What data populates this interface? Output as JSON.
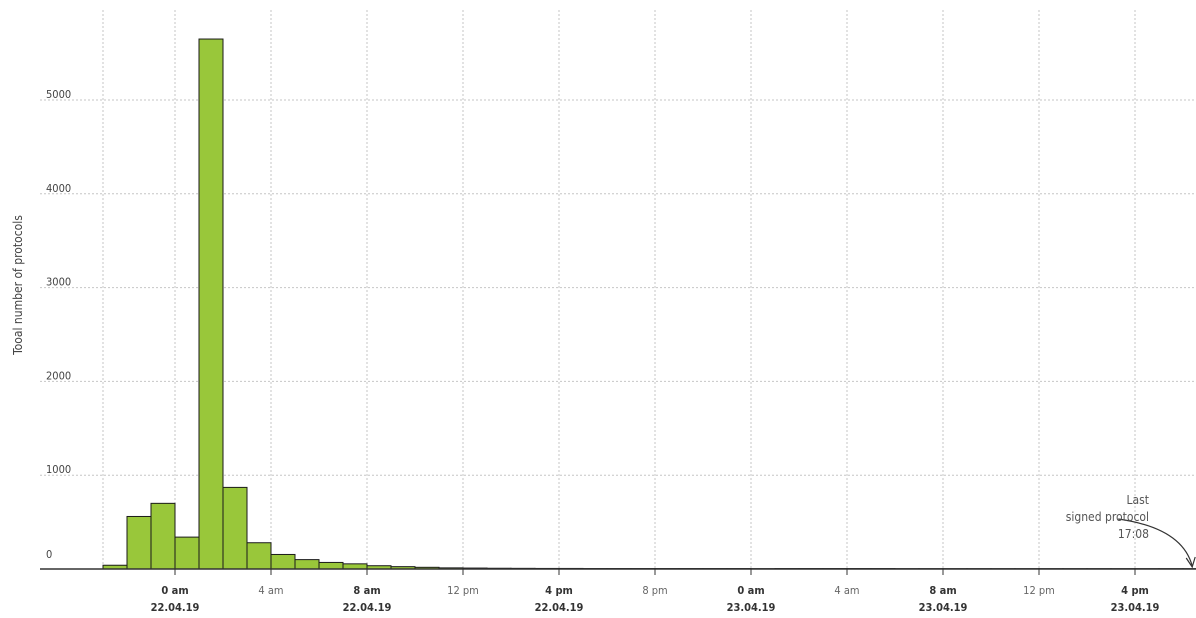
{
  "chart_data": {
    "type": "bar",
    "ylabel": "Tooal number of protocols",
    "ylim": [
      0,
      5900
    ],
    "yticks": [
      0,
      1000,
      2000,
      3000,
      4000,
      5000
    ],
    "grid": true,
    "bar_color": "#99c73a",
    "bin_hours": 1,
    "bin_start": "2019-04-21 21:00",
    "values": [
      40,
      560,
      700,
      340,
      5650,
      870,
      280,
      155,
      100,
      70,
      55,
      35,
      25,
      18,
      12,
      10,
      8,
      7,
      6,
      6,
      5,
      5,
      5,
      5,
      5,
      5,
      5,
      4,
      5,
      5,
      5,
      5,
      5,
      4,
      4,
      4,
      4,
      4,
      4,
      4,
      4,
      4,
      4,
      4,
      4,
      4,
      3,
      3,
      3,
      3,
      3,
      3,
      3,
      3,
      3,
      3
    ],
    "xticks": [
      {
        "time": "2019-04-22 00:00",
        "label": "0 am",
        "date": "22.04.19"
      },
      {
        "time": "2019-04-22 04:00",
        "label": "4 am",
        "date": ""
      },
      {
        "time": "2019-04-22 08:00",
        "label": "8 am",
        "date": "22.04.19"
      },
      {
        "time": "2019-04-22 12:00",
        "label": "12 pm",
        "date": ""
      },
      {
        "time": "2019-04-22 16:00",
        "label": "4 pm",
        "date": "22.04.19"
      },
      {
        "time": "2019-04-22 20:00",
        "label": "8 pm",
        "date": ""
      },
      {
        "time": "2019-04-23 00:00",
        "label": "0 am",
        "date": "23.04.19"
      },
      {
        "time": "2019-04-23 04:00",
        "label": "4 am",
        "date": ""
      },
      {
        "time": "2019-04-23 08:00",
        "label": "8 am",
        "date": "23.04.19"
      },
      {
        "time": "2019-04-23 12:00",
        "label": "12 pm",
        "date": ""
      },
      {
        "time": "2019-04-23 16:00",
        "label": "4 pm",
        "date": "23.04.19"
      }
    ],
    "annotation": {
      "lines": [
        "Last",
        "signed protocol",
        "17:08"
      ],
      "time": "2019-04-23 17:08"
    }
  }
}
